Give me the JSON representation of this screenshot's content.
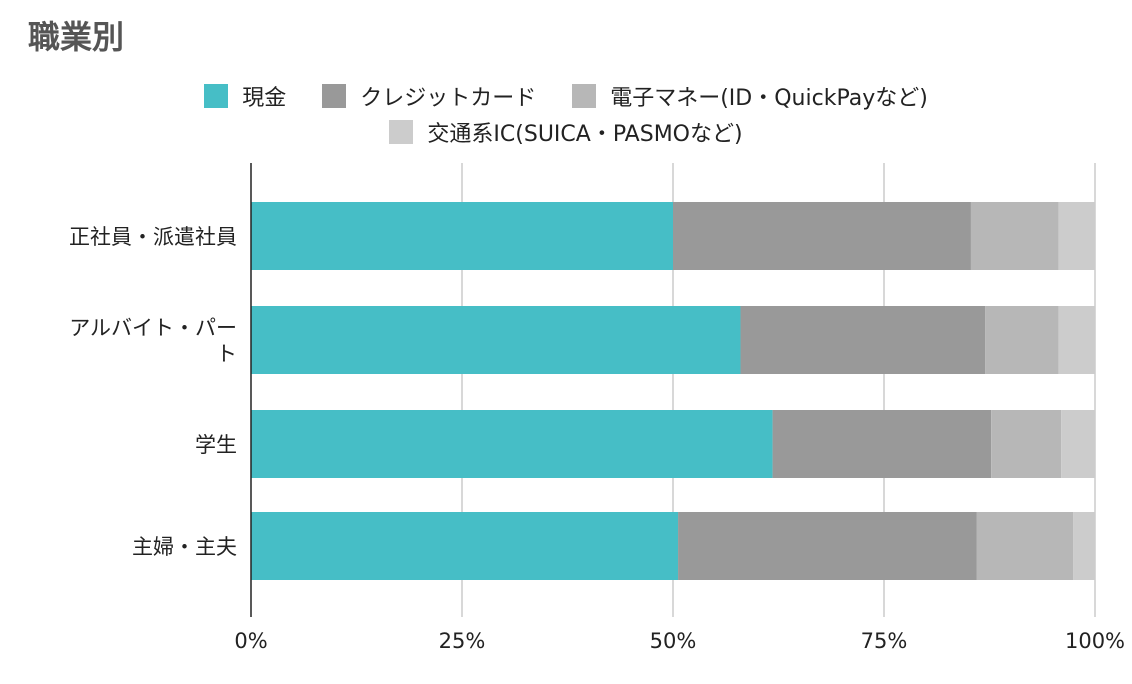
{
  "title": "職業別",
  "chart_data": {
    "type": "bar",
    "orientation": "horizontal",
    "stacked": "percent",
    "title": "職業別",
    "xlabel": "",
    "ylabel": "",
    "xlim": [
      0,
      100
    ],
    "x_ticks": [
      "0%",
      "25%",
      "50%",
      "75%",
      "100%"
    ],
    "grid": true,
    "legend_position": "top",
    "categories": [
      "正社員・派遣社員",
      "アルバイト・パート",
      "学生",
      "主婦・主夫"
    ],
    "series": [
      {
        "name": "現金",
        "color": "#46bec6",
        "values": [
          50.0,
          58.0,
          61.8,
          50.6
        ]
      },
      {
        "name": "クレジットカード",
        "color": "#999999",
        "values": [
          35.3,
          29.0,
          25.9,
          35.4
        ]
      },
      {
        "name": "電子マネー(ID・QuickPayなど)",
        "color": "#b7b7b7",
        "values": [
          10.4,
          8.7,
          8.3,
          11.4
        ]
      },
      {
        "name": "交通系IC(SUICA・PASMOなど)",
        "color": "#cccccc",
        "values": [
          4.3,
          4.3,
          4.0,
          2.6
        ]
      }
    ]
  }
}
